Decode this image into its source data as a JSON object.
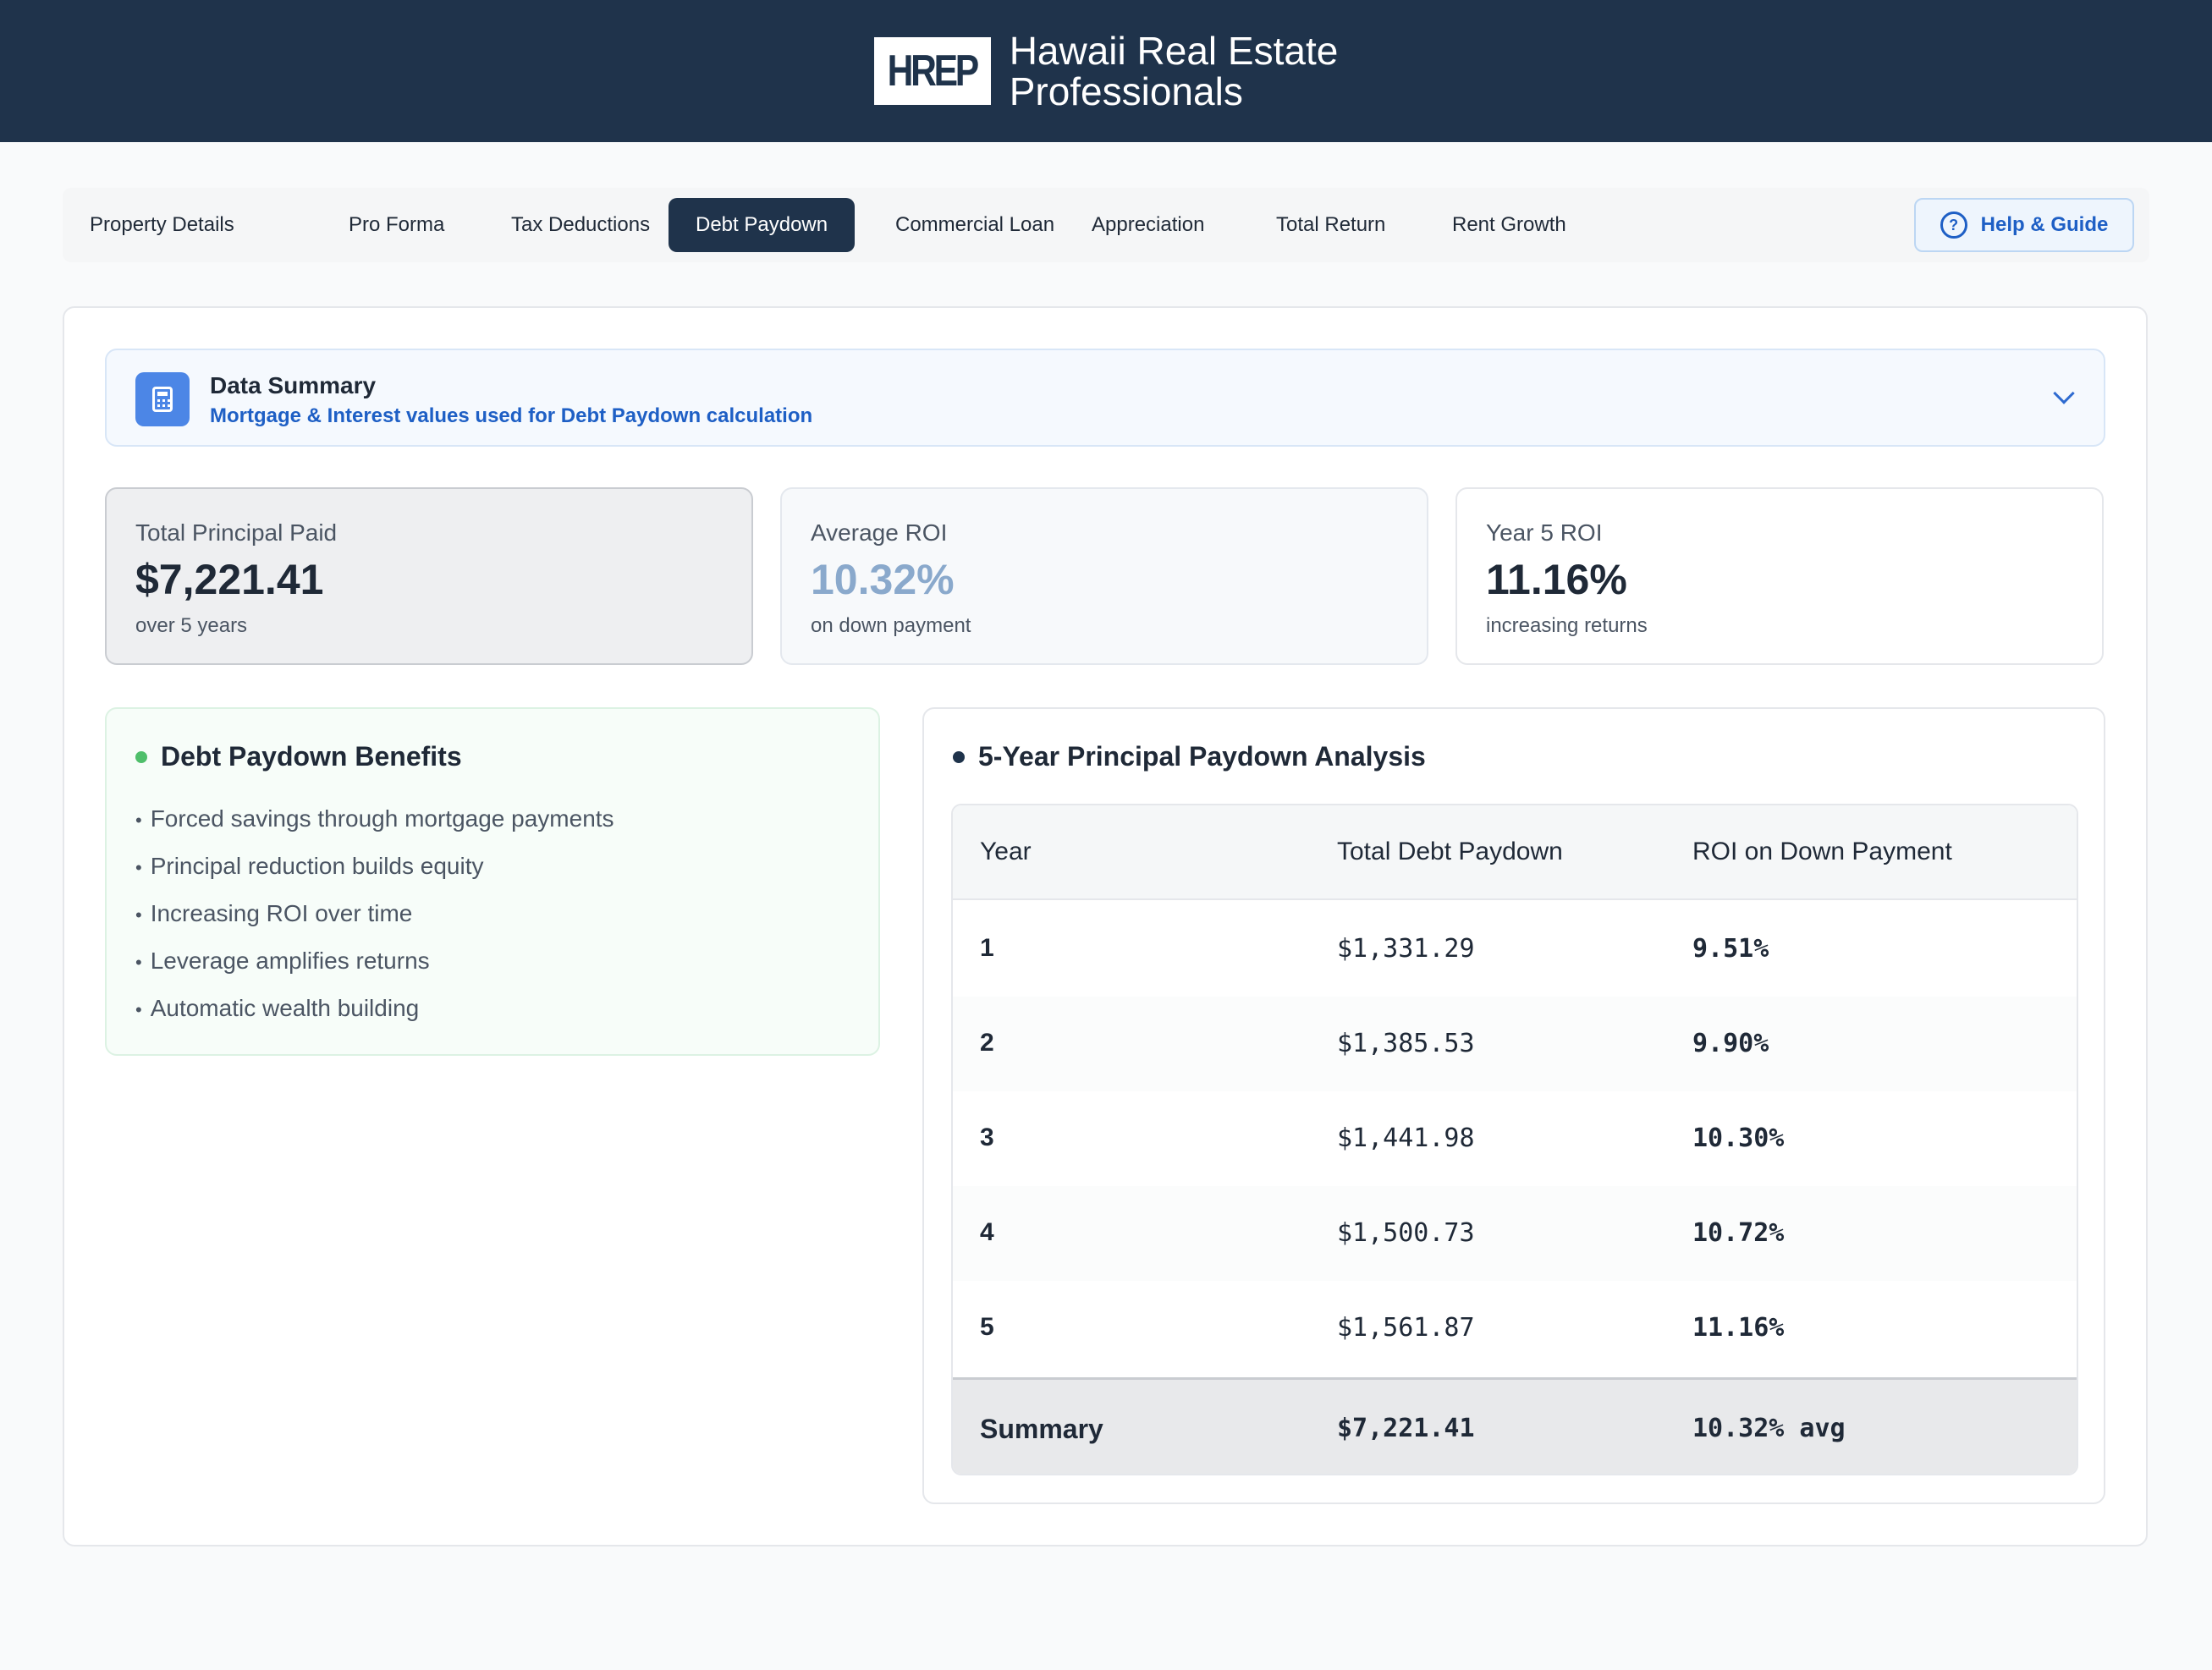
{
  "header": {
    "logo": "HREP",
    "brand_line1": "Hawaii Real Estate",
    "brand_line2": "Professionals"
  },
  "tabs": [
    {
      "label": "Property Details",
      "active": false
    },
    {
      "label": "Pro Forma",
      "active": false
    },
    {
      "label": "Tax Deductions",
      "active": false
    },
    {
      "label": "Debt Paydown",
      "active": true
    },
    {
      "label": "Commercial Loan",
      "active": false
    },
    {
      "label": "Appreciation",
      "active": false
    },
    {
      "label": "Total Return",
      "active": false
    },
    {
      "label": "Rent Growth",
      "active": false
    }
  ],
  "help": {
    "icon": "?",
    "label": "Help & Guide"
  },
  "data_summary": {
    "title": "Data Summary",
    "subtitle": "Mortgage & Interest values used for Debt Paydown calculation"
  },
  "stats": [
    {
      "label": "Total Principal Paid",
      "value": "$7,221.41",
      "note": "over 5 years"
    },
    {
      "label": "Average ROI",
      "value": "10.32%",
      "note": "on down payment"
    },
    {
      "label": "Year 5 ROI",
      "value": "11.16%",
      "note": "increasing returns"
    }
  ],
  "benefits": {
    "title": "Debt Paydown Benefits",
    "items": [
      "Forced savings through mortgage payments",
      "Principal reduction builds equity",
      "Increasing ROI over time",
      "Leverage amplifies returns",
      "Automatic wealth building"
    ]
  },
  "analysis": {
    "title": "5-Year Principal Paydown Analysis",
    "columns": [
      "Year",
      "Total Debt Paydown",
      "ROI on Down Payment"
    ],
    "rows": [
      {
        "year": "1",
        "paydown": "$1,331.29",
        "roi": "9.51%"
      },
      {
        "year": "2",
        "paydown": "$1,385.53",
        "roi": "9.90%"
      },
      {
        "year": "3",
        "paydown": "$1,441.98",
        "roi": "10.30%"
      },
      {
        "year": "4",
        "paydown": "$1,500.73",
        "roi": "10.72%"
      },
      {
        "year": "5",
        "paydown": "$1,561.87",
        "roi": "11.16%"
      }
    ],
    "summary": {
      "label": "Summary",
      "paydown": "$7,221.41",
      "roi": "10.32% avg"
    }
  }
}
